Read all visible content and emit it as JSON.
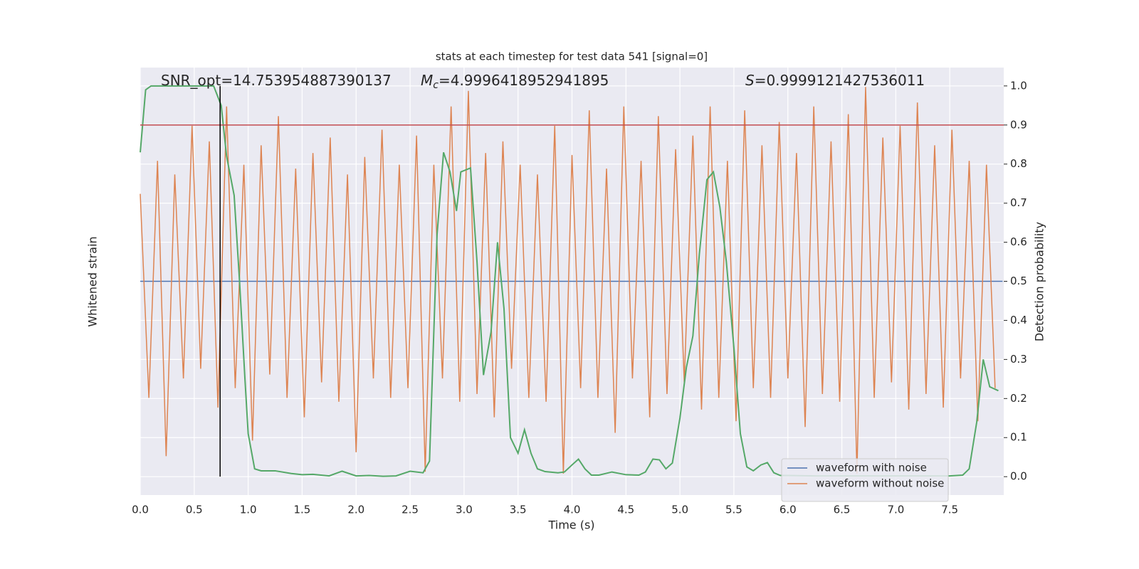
{
  "chart_data": {
    "type": "line",
    "title": "stats at each timestep for test data 541 [signal=0]",
    "xlabel": "Time (s)",
    "ylabel": "Whitened strain",
    "y2label": "Detection probability",
    "xlim": [
      0,
      8
    ],
    "xticks": [
      {
        "value": 0,
        "label": "0.0"
      },
      0.5,
      {
        "value": 1,
        "label": "1.0"
      },
      1.5,
      {
        "value": 2,
        "label": "2.0"
      },
      2.5,
      {
        "value": 3,
        "label": "3.0"
      },
      3.5,
      {
        "value": 4,
        "label": "4.0"
      },
      4.5,
      {
        "value": 5,
        "label": "5.0"
      },
      5.5,
      {
        "value": 6,
        "label": "6.0"
      },
      6.5,
      {
        "value": 7,
        "label": "7.0"
      },
      7.5
    ],
    "ylim": [
      -1.1,
      1.1
    ],
    "y2lim": [
      -0.047,
      1.047
    ],
    "y2ticks": [
      {
        "value": 0,
        "label": "0.0"
      },
      0.1,
      0.2,
      0.3,
      0.4,
      0.5,
      0.6,
      0.7,
      0.8,
      0.9,
      {
        "value": 1,
        "label": "1.0"
      }
    ],
    "grid": true,
    "background": "#eaeaf2",
    "legend": "lower right",
    "threshold": 0.9,
    "threshold_color": "#c44e52",
    "marker_x": 0.74,
    "marker_color": "#000000",
    "annotations": [
      {
        "text": "SNR_opt=14.753954887390137"
      },
      {
        "symbol": "M",
        "subscript": "c",
        "text": "=4.9996418952941895"
      },
      {
        "symbol": "S",
        "text": "=0.9999121427536011"
      }
    ],
    "series": [
      {
        "name": "waveform with noise",
        "color": "#4c72b0",
        "x": [
          0,
          7.99
        ],
        "values": [
          0,
          0
        ]
      },
      {
        "name": "waveform without noise",
        "color": "#dd8452",
        "x": [
          0,
          0.08,
          0.16,
          0.24,
          0.32,
          0.4,
          0.48,
          0.56,
          0.64,
          0.72,
          0.8,
          0.88,
          0.96,
          1.04,
          1.12,
          1.2,
          1.28,
          1.36,
          1.44,
          1.52,
          1.6,
          1.68,
          1.76,
          1.84,
          1.92,
          2,
          2.08,
          2.16,
          2.24,
          2.32,
          2.4,
          2.48,
          2.56,
          2.64,
          2.72,
          2.8,
          2.88,
          2.96,
          3.04,
          3.12,
          3.2,
          3.28,
          3.36,
          3.44,
          3.52,
          3.6,
          3.68,
          3.76,
          3.84,
          3.92,
          4,
          4.08,
          4.16,
          4.24,
          4.32,
          4.4,
          4.48,
          4.56,
          4.64,
          4.72,
          4.8,
          4.88,
          4.96,
          5.04,
          5.12,
          5.2,
          5.28,
          5.36,
          5.44,
          5.52,
          5.6,
          5.68,
          5.76,
          5.84,
          5.92,
          6,
          6.08,
          6.16,
          6.24,
          6.32,
          6.4,
          6.48,
          6.56,
          6.64,
          6.72,
          6.8,
          6.88,
          6.96,
          7.04,
          7.12,
          7.2,
          7.28,
          7.36,
          7.44,
          7.52,
          7.6,
          7.68,
          7.76,
          7.84,
          7.92
        ],
        "values": [
          0.45,
          -0.6,
          0.62,
          -0.9,
          0.55,
          -0.5,
          0.8,
          -0.45,
          0.72,
          -0.65,
          0.9,
          -0.55,
          0.6,
          -0.82,
          0.7,
          -0.48,
          0.85,
          -0.6,
          0.58,
          -0.7,
          0.66,
          -0.52,
          0.74,
          -0.62,
          0.55,
          -0.88,
          0.64,
          -0.5,
          0.78,
          -0.6,
          0.6,
          -0.55,
          0.75,
          -0.98,
          0.6,
          -0.5,
          0.9,
          -0.62,
          0.98,
          -0.58,
          0.66,
          -0.7,
          0.72,
          -0.45,
          0.6,
          -0.6,
          0.55,
          -0.62,
          0.8,
          -0.99,
          0.65,
          -0.55,
          0.88,
          -0.6,
          0.58,
          -0.78,
          0.9,
          -0.5,
          0.62,
          -0.7,
          0.85,
          -0.58,
          0.68,
          -0.52,
          0.75,
          -0.66,
          0.9,
          -0.6,
          0.62,
          -0.72,
          0.88,
          -0.55,
          0.7,
          -0.6,
          0.82,
          -0.5,
          0.66,
          -0.75,
          0.9,
          -0.58,
          0.72,
          -0.62,
          0.86,
          -0.99,
          1.0,
          -0.6,
          0.74,
          -0.52,
          0.8,
          -0.66,
          0.92,
          -0.58,
          0.7,
          -0.65,
          0.78,
          -0.5,
          0.62,
          -0.72,
          0.6,
          -0.55
        ]
      },
      {
        "color": "#55a868",
        "axis": "y2",
        "x": [
          0,
          0.05,
          0.1,
          0.2,
          0.3,
          0.4,
          0.5,
          0.6,
          0.68,
          0.75,
          0.8,
          0.87,
          0.92,
          0.97,
          1.0,
          1.06,
          1.12,
          1.25,
          1.4,
          1.5,
          1.6,
          1.75,
          1.87,
          2.0,
          2.12,
          2.25,
          2.37,
          2.5,
          2.62,
          2.68,
          2.75,
          2.81,
          2.87,
          2.93,
          2.97,
          3.06,
          3.12,
          3.18,
          3.25,
          3.31,
          3.37,
          3.43,
          3.5,
          3.56,
          3.62,
          3.68,
          3.75,
          3.87,
          3.93,
          4.0,
          4.06,
          4.12,
          4.18,
          4.25,
          4.37,
          4.5,
          4.62,
          4.68,
          4.75,
          4.81,
          4.87,
          4.93,
          5.0,
          5.06,
          5.12,
          5.18,
          5.25,
          5.31,
          5.37,
          5.43,
          5.5,
          5.56,
          5.62,
          5.68,
          5.75,
          5.81,
          5.87,
          5.93,
          6.0,
          6.25,
          6.5,
          6.75,
          7.0,
          7.25,
          7.5,
          7.62,
          7.68,
          7.75,
          7.81,
          7.87,
          7.95
        ],
        "values": [
          0.83,
          0.99,
          1.0,
          1.0,
          1.0,
          1.0,
          1.0,
          1.0,
          1.0,
          0.95,
          0.82,
          0.72,
          0.5,
          0.25,
          0.11,
          0.02,
          0.015,
          0.015,
          0.008,
          0.005,
          0.006,
          0.002,
          0.014,
          0.002,
          0.003,
          0.001,
          0.002,
          0.014,
          0.01,
          0.04,
          0.62,
          0.83,
          0.78,
          0.68,
          0.78,
          0.79,
          0.55,
          0.26,
          0.37,
          0.6,
          0.43,
          0.1,
          0.06,
          0.12,
          0.06,
          0.02,
          0.013,
          0.01,
          0.012,
          0.03,
          0.045,
          0.02,
          0.004,
          0.004,
          0.012,
          0.005,
          0.004,
          0.012,
          0.045,
          0.043,
          0.02,
          0.035,
          0.15,
          0.28,
          0.36,
          0.57,
          0.76,
          0.78,
          0.69,
          0.55,
          0.33,
          0.11,
          0.025,
          0.015,
          0.03,
          0.036,
          0.01,
          0.003,
          0.003,
          0.002,
          0.002,
          0.002,
          0.002,
          0.002,
          0.002,
          0.004,
          0.02,
          0.14,
          0.3,
          0.23,
          0.22
        ]
      }
    ]
  }
}
